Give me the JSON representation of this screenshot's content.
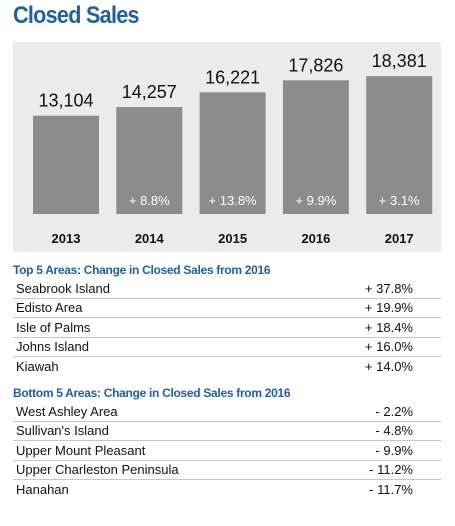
{
  "title": "Closed Sales",
  "chart_data": {
    "type": "bar",
    "categories": [
      "2013",
      "2014",
      "2015",
      "2016",
      "2017"
    ],
    "values": [
      13104,
      14257,
      16221,
      17826,
      18381
    ],
    "value_labels": [
      "13,104",
      "14,257",
      "16,221",
      "17,826",
      "18,381"
    ],
    "change_labels": [
      "",
      "+ 8.8%",
      "+ 13.8%",
      "+ 9.9%",
      "+ 3.1%"
    ],
    "bar_color": "#8c8c8c",
    "background_color": "#ebebeb",
    "grid": false,
    "legend": "none",
    "xlabel": "",
    "ylabel": ""
  },
  "top_areas": {
    "heading": "Top 5 Areas: Change in Closed Sales from 2016",
    "rows": [
      {
        "name": "Seabrook Island",
        "change": "+ 37.8%"
      },
      {
        "name": "Edisto Area",
        "change": "+ 19.9%"
      },
      {
        "name": "Isle of Palms",
        "change": "+ 18.4%"
      },
      {
        "name": "Johns Island",
        "change": "+ 16.0%"
      },
      {
        "name": "Kiawah",
        "change": "+ 14.0%"
      }
    ]
  },
  "bottom_areas": {
    "heading": "Bottom 5 Areas: Change in Closed Sales from 2016",
    "rows": [
      {
        "name": "West Ashley Area",
        "change": "- 2.2%"
      },
      {
        "name": "Sullivan's Island",
        "change": "- 4.8%"
      },
      {
        "name": "Upper Mount Pleasant",
        "change": "- 9.9%"
      },
      {
        "name": "Upper Charleston Peninsula",
        "change": "- 11.2%"
      },
      {
        "name": "Hanahan",
        "change": "- 11.7%"
      }
    ]
  },
  "colors": {
    "heading_blue": "#1f5fa3",
    "bar_gray": "#8c8c8c",
    "panel_gray": "#ebebeb"
  }
}
